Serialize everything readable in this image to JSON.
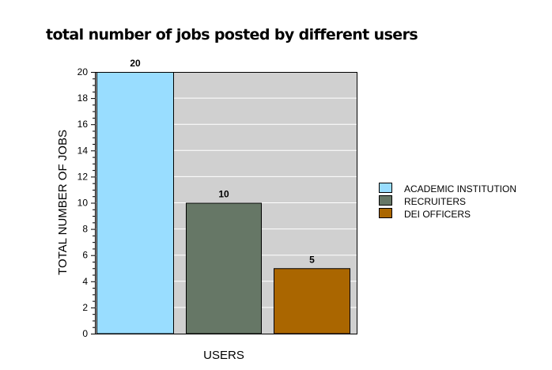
{
  "chart_data": {
    "type": "bar",
    "title": "total number of jobs posted by different users",
    "xlabel": "USERS",
    "ylabel": "TOTAL NUMBER OF JOBS",
    "categories": [
      "ACADEMIC INSTITUTION",
      "RECRUITERS",
      "DEI OFFICERS"
    ],
    "values": [
      20,
      10,
      5
    ],
    "colors": [
      "#99ddff",
      "#667766",
      "#aa6600"
    ],
    "plot_background": "#d0d0d0",
    "ylim": [
      0,
      20
    ],
    "yticks": [
      0,
      2,
      4,
      6,
      8,
      10,
      12,
      14,
      16,
      18,
      20
    ],
    "data_labels": [
      "20",
      "10",
      "5"
    ],
    "grid": true,
    "legend": {
      "placement": "right",
      "entries": [
        "ACADEMIC INSTITUTION",
        "RECRUITERS",
        "DEI OFFICERS"
      ]
    }
  }
}
